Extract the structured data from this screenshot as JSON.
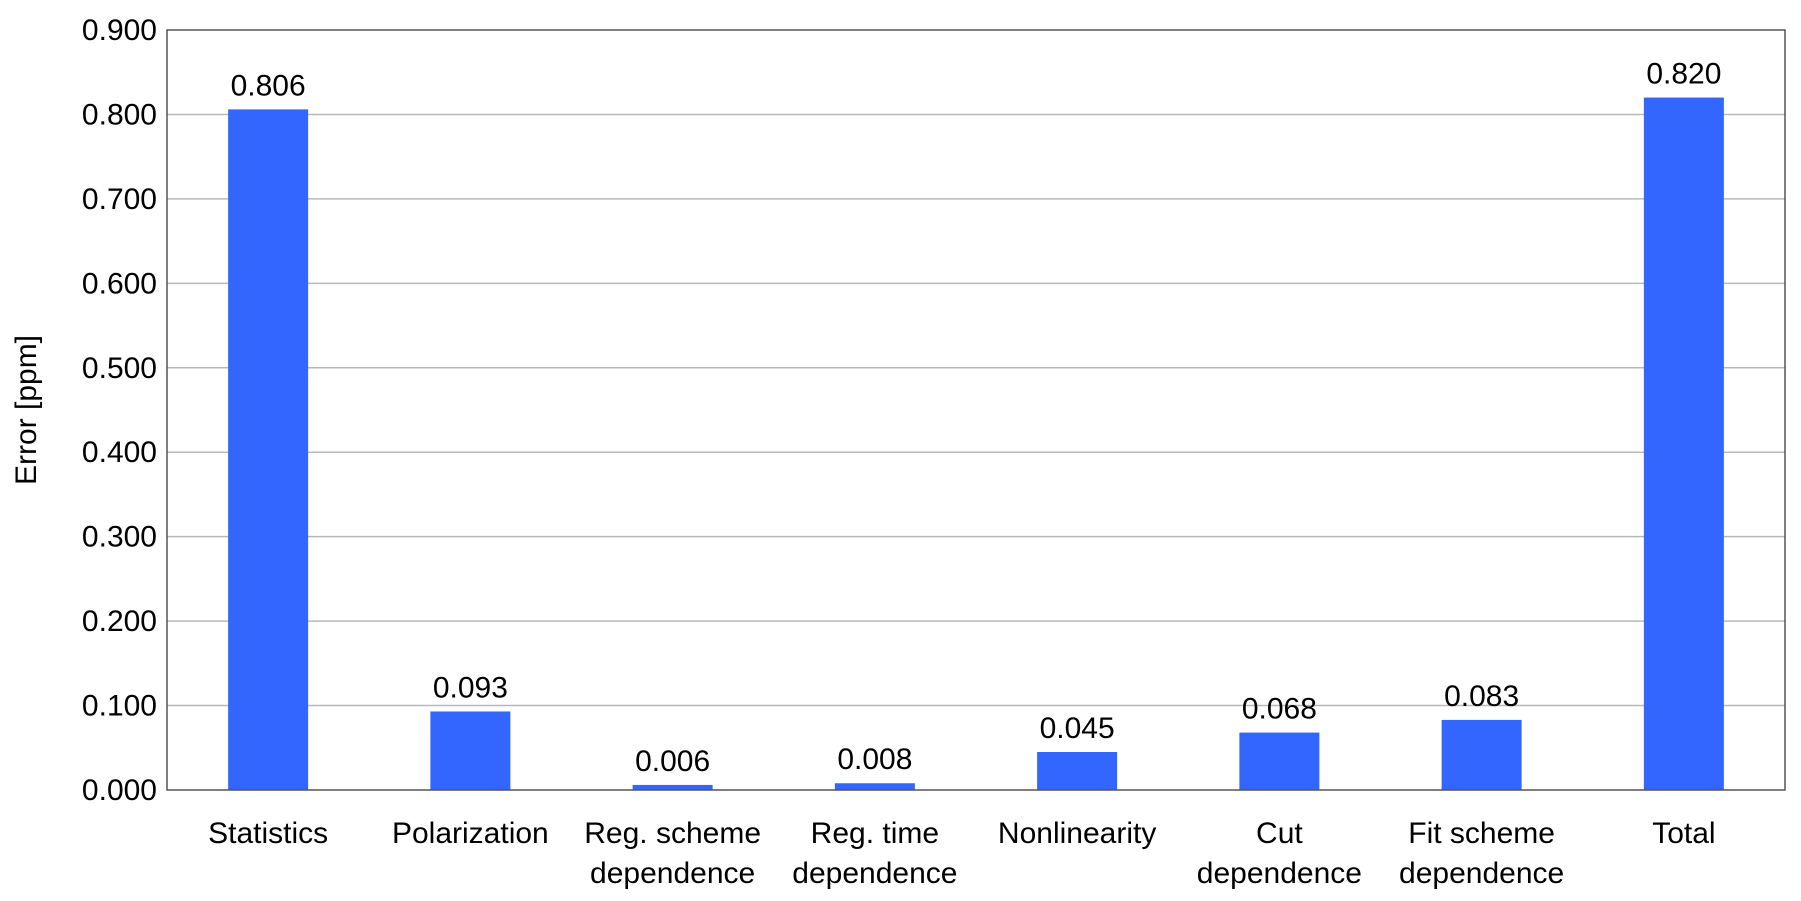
{
  "chart_data": {
    "type": "bar",
    "title": "",
    "xlabel": "",
    "ylabel": "Error [ppm]",
    "ylim": [
      0,
      0.9
    ],
    "yticks": [
      "0.000",
      "0.100",
      "0.200",
      "0.300",
      "0.400",
      "0.500",
      "0.600",
      "0.700",
      "0.800",
      "0.900"
    ],
    "grid": true,
    "categories": [
      [
        "Statistics"
      ],
      [
        "Polarization"
      ],
      [
        "Reg. scheme",
        "dependence"
      ],
      [
        "Reg. time",
        "dependence"
      ],
      [
        "Nonlinearity"
      ],
      [
        "Cut",
        "dependence"
      ],
      [
        "Fit scheme",
        "dependence"
      ],
      [
        "Total"
      ]
    ],
    "values": [
      0.806,
      0.093,
      0.006,
      0.008,
      0.045,
      0.068,
      0.083,
      0.82
    ],
    "value_labels": [
      "0.806",
      "0.093",
      "0.006",
      "0.008",
      "0.045",
      "0.068",
      "0.083",
      "0.820"
    ],
    "bar_color": "#3366ff"
  }
}
